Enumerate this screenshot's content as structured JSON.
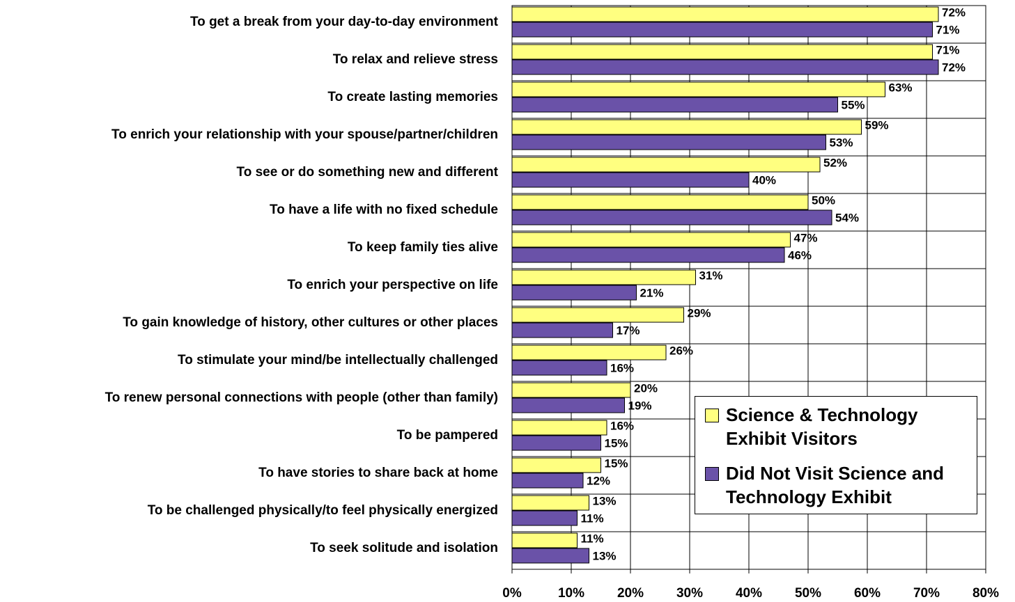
{
  "chart_data": {
    "type": "bar",
    "orientation": "horizontal",
    "categories": [
      "To get a break from your day-to-day environment",
      "To relax and relieve stress",
      "To create lasting memories",
      "To enrich your relationship with your spouse/partner/children",
      "To see or do something new and different",
      "To have a life with no fixed schedule",
      "To keep family ties alive",
      "To enrich your perspective on life",
      "To gain knowledge of history, other cultures or other places",
      "To stimulate your mind/be intellectually challenged",
      "To renew personal connections with people (other than family)",
      "To be pampered",
      "To have stories to share back at home",
      "To be challenged physically/to feel physically energized",
      "To seek solitude and isolation"
    ],
    "series": [
      {
        "name": "Science & Technology Exhibit Visitors",
        "color": "#ffff80",
        "values": [
          72,
          71,
          63,
          59,
          52,
          50,
          47,
          31,
          29,
          26,
          20,
          16,
          15,
          13,
          11
        ],
        "value_labels": [
          "72%",
          "71%",
          "63%",
          "59%",
          "52%",
          "50%",
          "47%",
          "31%",
          "29%",
          "26%",
          "20%",
          "16%",
          "15%",
          "13%",
          "11%"
        ]
      },
      {
        "name": "Did Not Visit Science and Technology Exhibit",
        "color": "#6a52a8",
        "values": [
          71,
          72,
          55,
          53,
          40,
          54,
          46,
          21,
          17,
          16,
          19,
          15,
          12,
          11,
          13
        ],
        "value_labels": [
          "71%",
          "72%",
          "55%",
          "53%",
          "40%",
          "54%",
          "46%",
          "21%",
          "17%",
          "16%",
          "19%",
          "15%",
          "12%",
          "11%",
          "13%"
        ]
      }
    ],
    "xlim": [
      0,
      80
    ],
    "xticks": [
      {
        "value": 0,
        "label": "0%"
      },
      {
        "value": 10,
        "label": "10%"
      },
      {
        "value": 20,
        "label": "20%"
      },
      {
        "value": 30,
        "label": "30%"
      },
      {
        "value": 40,
        "label": "40%"
      },
      {
        "value": 50,
        "label": "50%"
      },
      {
        "value": 60,
        "label": "60%"
      },
      {
        "value": 70,
        "label": "70%"
      },
      {
        "value": 80,
        "label": "80%"
      }
    ],
    "grid": true,
    "legend": "lower right"
  }
}
